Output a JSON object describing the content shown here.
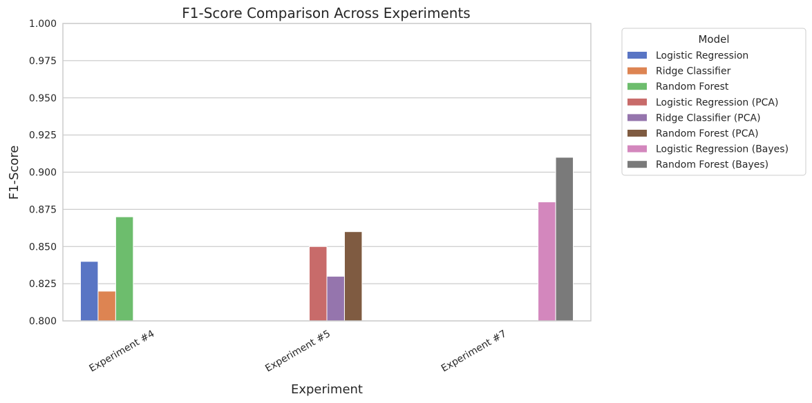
{
  "chart_data": {
    "type": "bar",
    "title": "F1-Score Comparison Across Experiments",
    "xlabel": "Experiment",
    "ylabel": "F1-Score",
    "ylim": [
      0.8,
      1.0
    ],
    "yticks": [
      "0.800",
      "0.825",
      "0.850",
      "0.875",
      "0.900",
      "0.925",
      "0.950",
      "0.975",
      "1.000"
    ],
    "grid": true,
    "legend_title": "Model",
    "legend_position": "outside-right",
    "categories": [
      "Experiment #4",
      "Experiment #5",
      "Experiment #7"
    ],
    "series": [
      {
        "name": "Logistic Regression",
        "color": "#5975c4",
        "values": [
          0.84,
          null,
          null
        ]
      },
      {
        "name": "Ridge Classifier",
        "color": "#dd8452",
        "values": [
          0.82,
          null,
          null
        ]
      },
      {
        "name": "Random Forest",
        "color": "#6dbd6d",
        "values": [
          0.87,
          null,
          null
        ]
      },
      {
        "name": "Logistic Regression (PCA)",
        "color": "#c86b6a",
        "values": [
          null,
          0.85,
          null
        ]
      },
      {
        "name": "Ridge Classifier (PCA)",
        "color": "#9575ad",
        "values": [
          null,
          0.83,
          null
        ]
      },
      {
        "name": "Random Forest (PCA)",
        "color": "#7f5b41",
        "values": [
          null,
          0.86,
          null
        ]
      },
      {
        "name": "Logistic Regression (Bayes)",
        "color": "#d387bd",
        "values": [
          null,
          null,
          0.88
        ]
      },
      {
        "name": "Random Forest (Bayes)",
        "color": "#7a7a7a",
        "values": [
          null,
          null,
          0.91
        ]
      }
    ]
  }
}
